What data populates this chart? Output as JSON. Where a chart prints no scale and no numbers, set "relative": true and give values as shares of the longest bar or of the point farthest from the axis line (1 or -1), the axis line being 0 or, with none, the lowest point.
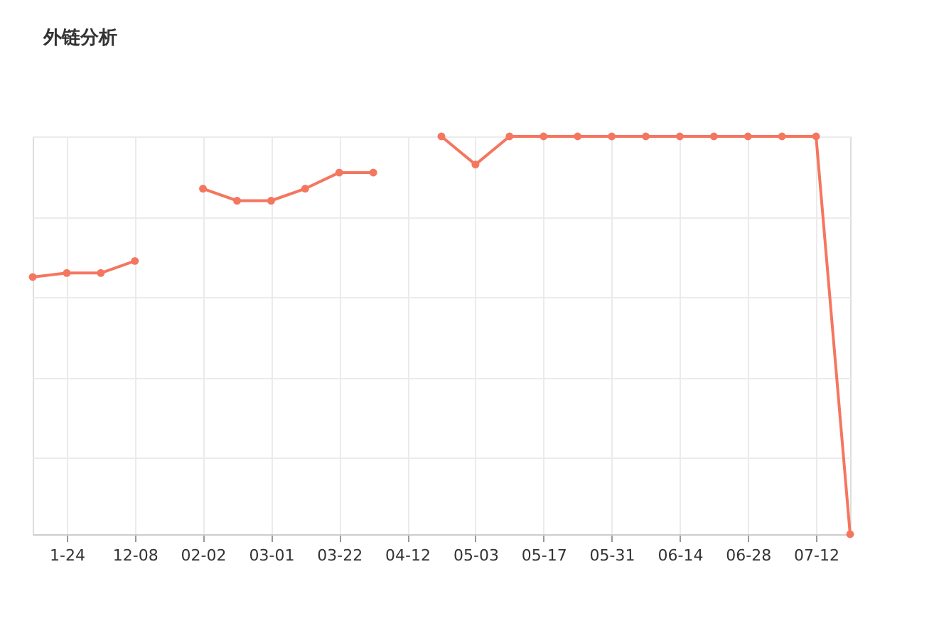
{
  "chart_data": {
    "type": "line",
    "title": "外链分析",
    "relative": true,
    "categories": [
      null,
      "1-24",
      null,
      "12-08",
      null,
      "02-02",
      null,
      "03-01",
      null,
      "03-22",
      null,
      "04-12",
      null,
      "05-03",
      null,
      "05-17",
      null,
      "05-31",
      null,
      "06-14",
      null,
      "06-28",
      null,
      "07-12",
      null
    ],
    "series": [
      {
        "color": "#f5765f",
        "values": [
          0.65,
          0.66,
          0.66,
          0.69,
          null,
          0.87,
          0.84,
          0.84,
          0.87,
          0.91,
          0.91,
          null,
          1,
          0.93,
          1,
          1,
          1,
          1,
          1,
          1,
          1,
          1,
          1,
          1,
          0.01
        ]
      }
    ],
    "marker": "circle",
    "line_style": "solid",
    "grid": true
  }
}
